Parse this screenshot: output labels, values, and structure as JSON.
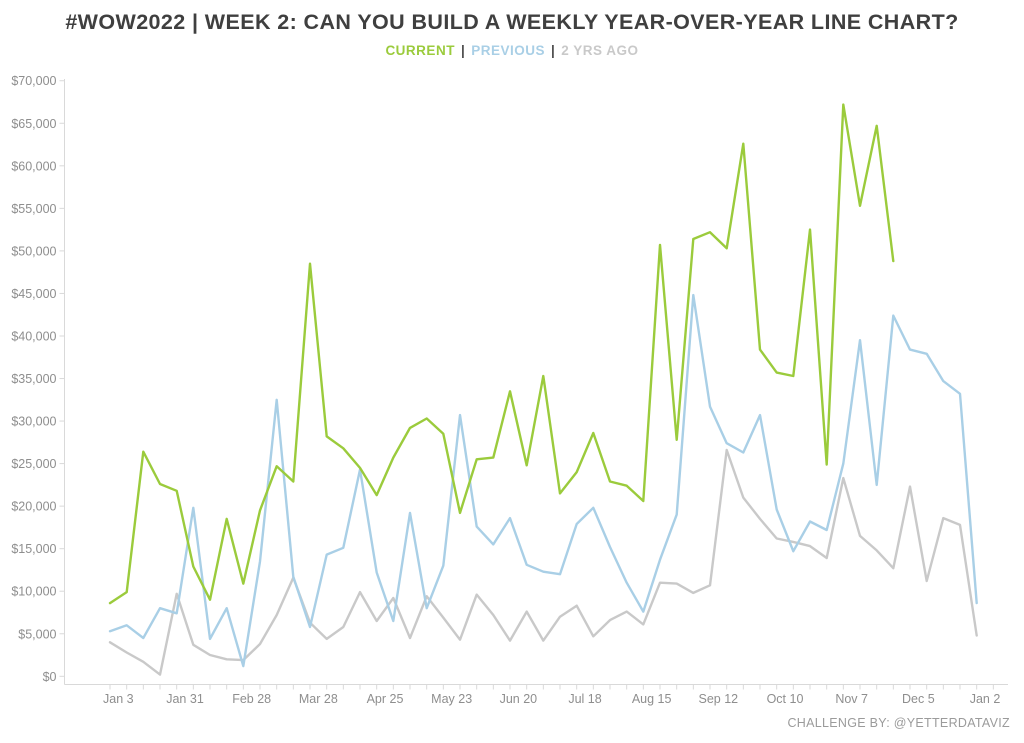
{
  "title": "#WOW2022 | WEEK 2: CAN YOU BUILD A WEEKLY YEAR-OVER-YEAR LINE CHART?",
  "credit": "CHALLENGE BY: @YETTERDATAVIZ",
  "legend": {
    "separator": "|",
    "items": [
      {
        "label": "CURRENT",
        "color": "#9bcb3c"
      },
      {
        "label": "PREVIOUS",
        "color": "#a9cfe6"
      },
      {
        "label": "2 YRS AGO",
        "color": "#c9c9c9"
      }
    ]
  },
  "chart_data": {
    "type": "line",
    "title": "#WOW2022 | WEEK 2: CAN YOU BUILD A WEEKLY YEAR-OVER-YEAR LINE CHART?",
    "xlabel": "",
    "ylabel": "",
    "ylim": [
      0,
      70000
    ],
    "y_tick_step": 5000,
    "grid": false,
    "legend_position": "top",
    "y_tick_labels": [
      "$0",
      "$5,000",
      "$10,000",
      "$15,000",
      "$20,000",
      "$25,000",
      "$30,000",
      "$35,000",
      "$40,000",
      "$45,000",
      "$50,000",
      "$55,000",
      "$60,000",
      "$65,000",
      "$70,000"
    ],
    "x_tick_labels": [
      "Jan 3",
      "Jan 31",
      "Feb 28",
      "Mar 28",
      "Apr 25",
      "May 23",
      "Jun 20",
      "Jul 18",
      "Aug 15",
      "Sep 12",
      "Oct 10",
      "Nov 7",
      "Dec 5",
      "Jan 2"
    ],
    "x": [
      "Jan 3",
      "Jan 10",
      "Jan 17",
      "Jan 24",
      "Jan 31",
      "Feb 7",
      "Feb 14",
      "Feb 21",
      "Feb 28",
      "Mar 7",
      "Mar 14",
      "Mar 21",
      "Mar 28",
      "Apr 4",
      "Apr 11",
      "Apr 18",
      "Apr 25",
      "May 2",
      "May 9",
      "May 16",
      "May 23",
      "May 30",
      "Jun 6",
      "Jun 13",
      "Jun 20",
      "Jun 27",
      "Jul 4",
      "Jul 11",
      "Jul 18",
      "Jul 25",
      "Aug 1",
      "Aug 8",
      "Aug 15",
      "Aug 22",
      "Aug 29",
      "Sep 5",
      "Sep 12",
      "Sep 19",
      "Sep 26",
      "Oct 3",
      "Oct 10",
      "Oct 17",
      "Oct 24",
      "Oct 31",
      "Nov 7",
      "Nov 14",
      "Nov 21",
      "Nov 28",
      "Dec 5",
      "Dec 12",
      "Dec 19",
      "Dec 26",
      "Jan 2"
    ],
    "series": [
      {
        "name": "CURRENT",
        "color": "#9bcb3c",
        "values": [
          8600,
          9900,
          26400,
          22600,
          21800,
          12900,
          9000,
          18500,
          10900,
          19500,
          24700,
          22900,
          48500,
          28200,
          26800,
          24500,
          21300,
          25700,
          29200,
          30300,
          28500,
          19200,
          25500,
          25700,
          33500,
          24800,
          35300,
          21500,
          24000,
          28600,
          22900,
          22400,
          20600,
          50700,
          27800,
          51400,
          52200,
          50300,
          62600,
          38400,
          35700,
          35300,
          52500,
          24900,
          67200,
          55300,
          64700,
          48800
        ]
      },
      {
        "name": "PREVIOUS",
        "color": "#a9cfe6",
        "values": [
          5300,
          6000,
          4500,
          8000,
          7400,
          19800,
          4400,
          8000,
          1200,
          13500,
          32500,
          11700,
          5800,
          14300,
          15100,
          24300,
          12200,
          6500,
          19200,
          8000,
          13000,
          30700,
          17600,
          15500,
          18600,
          13100,
          12300,
          12000,
          17900,
          19800,
          15200,
          11000,
          7600,
          13700,
          19000,
          44800,
          31700,
          27400,
          26300,
          30700,
          19600,
          14700,
          18200,
          17200,
          25000,
          39500,
          22500,
          42400,
          38400,
          37900,
          34700,
          33200,
          8600
        ]
      },
      {
        "name": "2 YRS AGO",
        "color": "#c9c9c9",
        "values": [
          4000,
          2800,
          1700,
          200,
          9700,
          3700,
          2500,
          2000,
          1900,
          3800,
          7200,
          11600,
          6300,
          4400,
          5800,
          9900,
          6500,
          9200,
          4500,
          9400,
          6900,
          4300,
          9600,
          7200,
          4200,
          7600,
          4200,
          7000,
          8300,
          4700,
          6600,
          7600,
          6100,
          11000,
          10900,
          9800,
          10700,
          26600,
          21000,
          18500,
          16200,
          15800,
          15300,
          13900,
          23300,
          16500,
          14800,
          12700,
          22300,
          11200,
          18600,
          17800,
          4800
        ]
      }
    ]
  }
}
